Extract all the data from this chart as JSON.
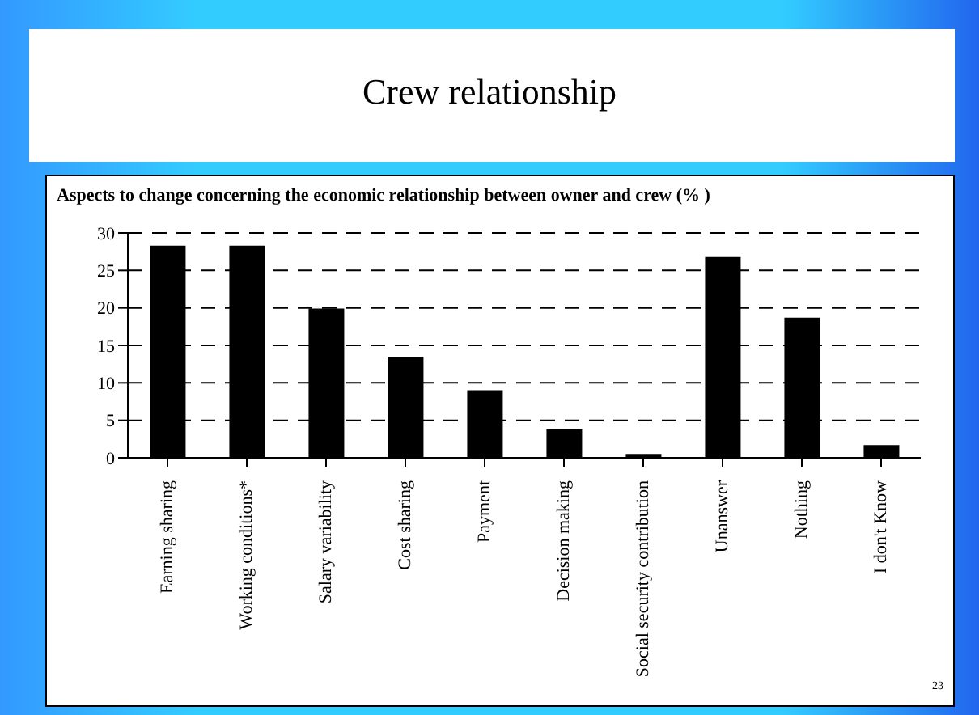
{
  "chart_data": {
    "type": "bar",
    "title": "Crew relationship",
    "subtitle": "Aspects to change concerning the economic relationship between owner and crew (% )",
    "categories": [
      "Earning sharing",
      "Working conditions*",
      "Salary variability",
      "Cost sharing",
      "Payment",
      "Decision making",
      "Social security contribution",
      "Unanswer",
      "Nothing",
      "I don't Know"
    ],
    "values": [
      28.3,
      28.3,
      19.9,
      13.5,
      9.0,
      3.8,
      0.5,
      26.8,
      18.7,
      1.7
    ],
    "color": "#000000",
    "ylim": [
      0,
      30
    ],
    "yticks": [
      0,
      5,
      10,
      15,
      20,
      25,
      30
    ],
    "grid": "y",
    "annotations": [
      "23"
    ]
  }
}
